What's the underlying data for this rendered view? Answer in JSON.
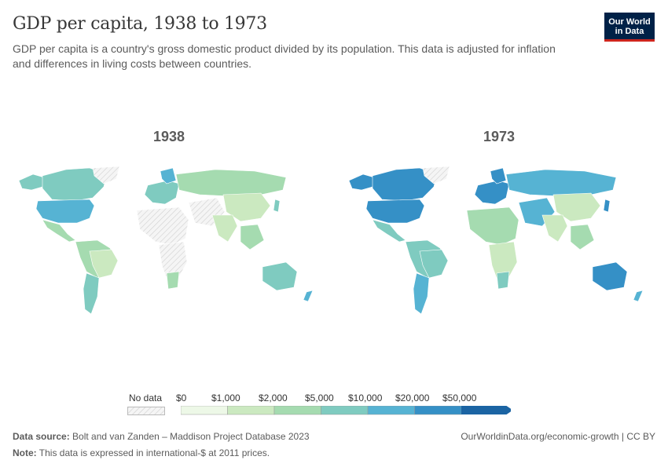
{
  "header": {
    "title": "GDP per capita, 1938 to 1973",
    "subtitle": "GDP per capita is a country's gross domestic product divided by its population. This data is adjusted for inflation and differences in living costs between countries.",
    "logo_line1": "Our World",
    "logo_line2": "in Data"
  },
  "maps": {
    "left_year": "1938",
    "right_year": "1973"
  },
  "legend": {
    "no_data_label": "No data",
    "bin_labels": [
      "$0",
      "$1,000",
      "$2,000",
      "$5,000",
      "$10,000",
      "$20,000",
      "$50,000"
    ],
    "colors": [
      "#edf8e7",
      "#cbe9c0",
      "#a5dbb0",
      "#7fcbc0",
      "#56b3d3",
      "#3590c6",
      "#1b64a3"
    ],
    "no_data_color": "#e0e0e0"
  },
  "footer": {
    "source_label": "Data source:",
    "source_text": "Bolt and van Zanden – Maddison Project Database 2023",
    "note_label": "Note:",
    "note_text": "This data is expressed in international-$ at 2011 prices.",
    "url": "OurWorldinData.org/economic-growth | CC BY"
  }
}
